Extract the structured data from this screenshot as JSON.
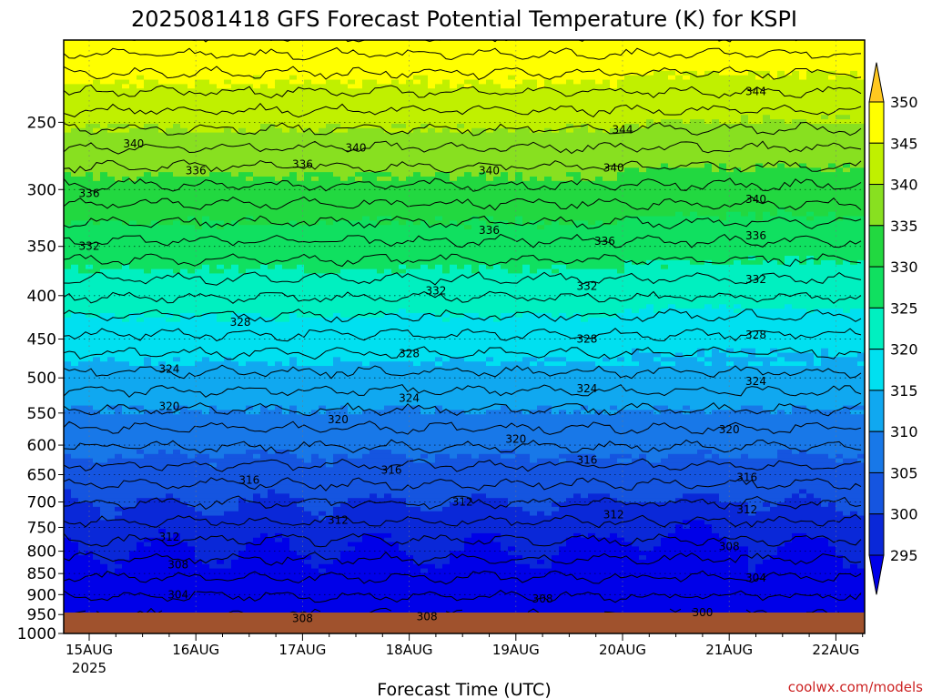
{
  "chart_data": {
    "type": "heatmap",
    "title": "2025081418 GFS Forecast Potential Temperature (K) for KSPI",
    "xlabel": "Forecast Time (UTC)",
    "ylabel": "",
    "credit": "coolwx.com/models",
    "x_ticks": [
      "15AUG",
      "16AUG",
      "17AUG",
      "18AUG",
      "19AUG",
      "20AUG",
      "21AUG",
      "22AUG"
    ],
    "x_year": "2025",
    "y_ticks": [
      250,
      300,
      350,
      400,
      450,
      500,
      550,
      600,
      650,
      700,
      750,
      800,
      850,
      900,
      950,
      1000
    ],
    "ylim": [
      200,
      1000
    ],
    "yscale": "log-pressure",
    "colorbar": {
      "ticks": [
        295,
        300,
        305,
        310,
        315,
        320,
        325,
        330,
        335,
        340,
        345,
        350
      ],
      "extend": "both",
      "colors": [
        "#0000e8",
        "#0a28d8",
        "#1555e0",
        "#1878e8",
        "#10a8f0",
        "#00e0f0",
        "#00f0c0",
        "#10e060",
        "#22d840",
        "#88e020",
        "#c0f000",
        "#ffff00",
        "#ffc820"
      ]
    },
    "ground_color": "#a0522d",
    "contour_labels": [
      {
        "x": "15AUG 10Z",
        "p": 265,
        "value": "340"
      },
      {
        "x": "15AUG 00Z",
        "p": 303,
        "value": "336"
      },
      {
        "x": "15AUG 00Z",
        "p": 350,
        "value": "332"
      },
      {
        "x": "16AUG 00Z",
        "p": 285,
        "value": "336"
      },
      {
        "x": "16AUG 10Z",
        "p": 430,
        "value": "328"
      },
      {
        "x": "15AUG 18Z",
        "p": 488,
        "value": "324"
      },
      {
        "x": "15AUG 18Z",
        "p": 540,
        "value": "320"
      },
      {
        "x": "16AUG 12Z",
        "p": 660,
        "value": "316"
      },
      {
        "x": "15AUG 18Z",
        "p": 770,
        "value": "312"
      },
      {
        "x": "15AUG 20Z",
        "p": 830,
        "value": "308"
      },
      {
        "x": "15AUG 20Z",
        "p": 900,
        "value": "304"
      },
      {
        "x": "17AUG 00Z",
        "p": 280,
        "value": "336"
      },
      {
        "x": "17AUG 12Z",
        "p": 268,
        "value": "340"
      },
      {
        "x": "17AUG 08Z",
        "p": 560,
        "value": "320"
      },
      {
        "x": "17AUG 08Z",
        "p": 735,
        "value": "312"
      },
      {
        "x": "17AUG 00Z",
        "p": 960,
        "value": "308"
      },
      {
        "x": "18AUG 06Z",
        "p": 395,
        "value": "332"
      },
      {
        "x": "18AUG 00Z",
        "p": 468,
        "value": "328"
      },
      {
        "x": "18AUG 00Z",
        "p": 528,
        "value": "324"
      },
      {
        "x": "17AUG 20Z",
        "p": 642,
        "value": "316"
      },
      {
        "x": "18AUG 12Z",
        "p": 700,
        "value": "312"
      },
      {
        "x": "18AUG 04Z",
        "p": 955,
        "value": "308"
      },
      {
        "x": "18AUG 18Z",
        "p": 285,
        "value": "340"
      },
      {
        "x": "18AUG 18Z",
        "p": 335,
        "value": "336"
      },
      {
        "x": "19AUG 00Z",
        "p": 590,
        "value": "320"
      },
      {
        "x": "19AUG 06Z",
        "p": 910,
        "value": "308"
      },
      {
        "x": "19AUG 16Z",
        "p": 390,
        "value": "332"
      },
      {
        "x": "19AUG 16Z",
        "p": 450,
        "value": "328"
      },
      {
        "x": "19AUG 16Z",
        "p": 515,
        "value": "324"
      },
      {
        "x": "19AUG 16Z",
        "p": 625,
        "value": "316"
      },
      {
        "x": "19AUG 20Z",
        "p": 345,
        "value": "336"
      },
      {
        "x": "19AUG 22Z",
        "p": 725,
        "value": "312"
      },
      {
        "x": "19AUG 22Z",
        "p": 283,
        "value": "340"
      },
      {
        "x": "20AUG 00Z",
        "p": 255,
        "value": "344"
      },
      {
        "x": "21AUG 06Z",
        "p": 230,
        "value": "344"
      },
      {
        "x": "21AUG 06Z",
        "p": 308,
        "value": "340"
      },
      {
        "x": "21AUG 06Z",
        "p": 340,
        "value": "336"
      },
      {
        "x": "21AUG 06Z",
        "p": 383,
        "value": "332"
      },
      {
        "x": "21AUG 06Z",
        "p": 445,
        "value": "328"
      },
      {
        "x": "21AUG 06Z",
        "p": 505,
        "value": "324"
      },
      {
        "x": "21AUG 00Z",
        "p": 575,
        "value": "320"
      },
      {
        "x": "21AUG 04Z",
        "p": 655,
        "value": "316"
      },
      {
        "x": "21AUG 04Z",
        "p": 715,
        "value": "312"
      },
      {
        "x": "21AUG 00Z",
        "p": 790,
        "value": "308"
      },
      {
        "x": "21AUG 06Z",
        "p": 860,
        "value": "304"
      },
      {
        "x": "20AUG 18Z",
        "p": 945,
        "value": "300"
      }
    ]
  }
}
